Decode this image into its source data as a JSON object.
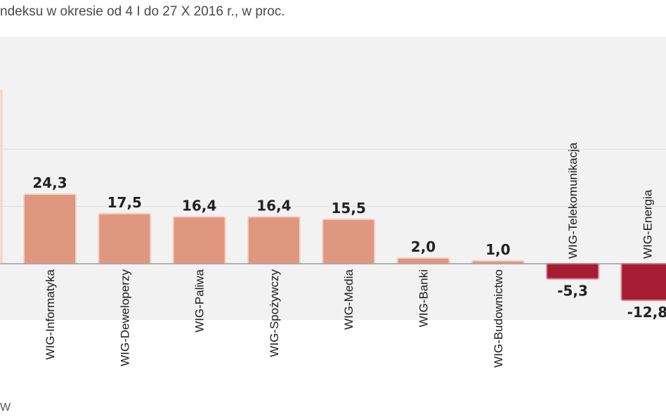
{
  "subtitle": "ndeksu w okresie od 4 I do 27 X 2016 r., w proc.",
  "source_fragment": "W",
  "colors": {
    "positive_fill": "#e0977f",
    "positive_stroke": "#f4d2c6",
    "negative_fill": "#a61c32",
    "negative_stroke": "#d98a96",
    "plot_bg": "#f2f2f2",
    "grid": "#ffffff",
    "baseline": "#8c8c8c"
  },
  "chart_data": {
    "type": "bar",
    "title": "",
    "xlabel": "",
    "ylabel": "",
    "ylim": [
      -20,
      40
    ],
    "grid": true,
    "categories": [
      "WIG-Informatyka",
      "WIG-Deweloperzy",
      "WIG-Paliwa",
      "WIG-Spożywczy",
      "WIG-Media",
      "WIG-Banki",
      "WIG-Budownictwo",
      "WIG-Telekomunikacja",
      "WIG-Energia"
    ],
    "values": [
      24.3,
      17.5,
      16.4,
      16.4,
      15.5,
      2.0,
      1.0,
      -5.3,
      -12.8
    ],
    "value_labels": [
      "24,3",
      "17,5",
      "16,4",
      "16,4",
      "15,5",
      "2,0",
      "1,0",
      "-5,3",
      "-12,8"
    ]
  }
}
